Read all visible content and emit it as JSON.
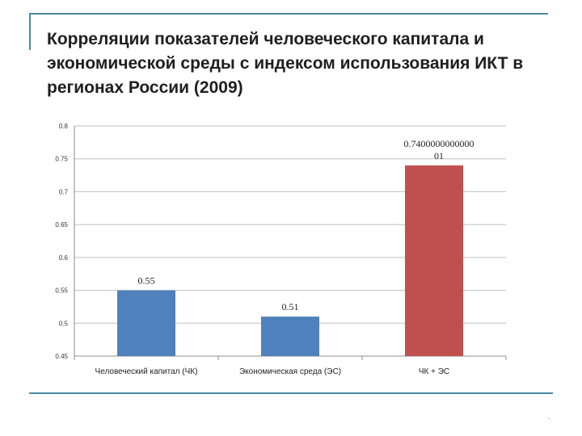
{
  "slide": {
    "title": "Корреляции показателей человеческого капитала и экономической среды с индексом использования ИКТ в регионах России (2009)",
    "footer_mark": "."
  },
  "chart_data": {
    "type": "bar",
    "title": "",
    "xlabel": "",
    "ylabel": "",
    "categories": [
      "Человеческий капитал (ЧК)",
      "Экономическая среда (ЭС)",
      "ЧК + ЭС"
    ],
    "values": [
      0.55,
      0.51,
      0.740000000000001
    ],
    "data_labels": [
      "0.55",
      "0.51",
      "0.7400000000000 01"
    ],
    "colors": [
      "#4f81bd",
      "#4f81bd",
      "#c0504d"
    ],
    "ylim": [
      0.45,
      0.8
    ],
    "yticks": [
      0.45,
      0.5,
      0.55,
      0.6,
      0.65,
      0.7,
      0.75,
      0.8
    ],
    "ytick_labels": [
      "0.45",
      "0.5",
      "0.55",
      "0.6",
      "0.65",
      "0.7",
      "0.75",
      "0.8"
    ],
    "grid": true,
    "gridline_color": "#bfbfbf",
    "legend": "none"
  }
}
